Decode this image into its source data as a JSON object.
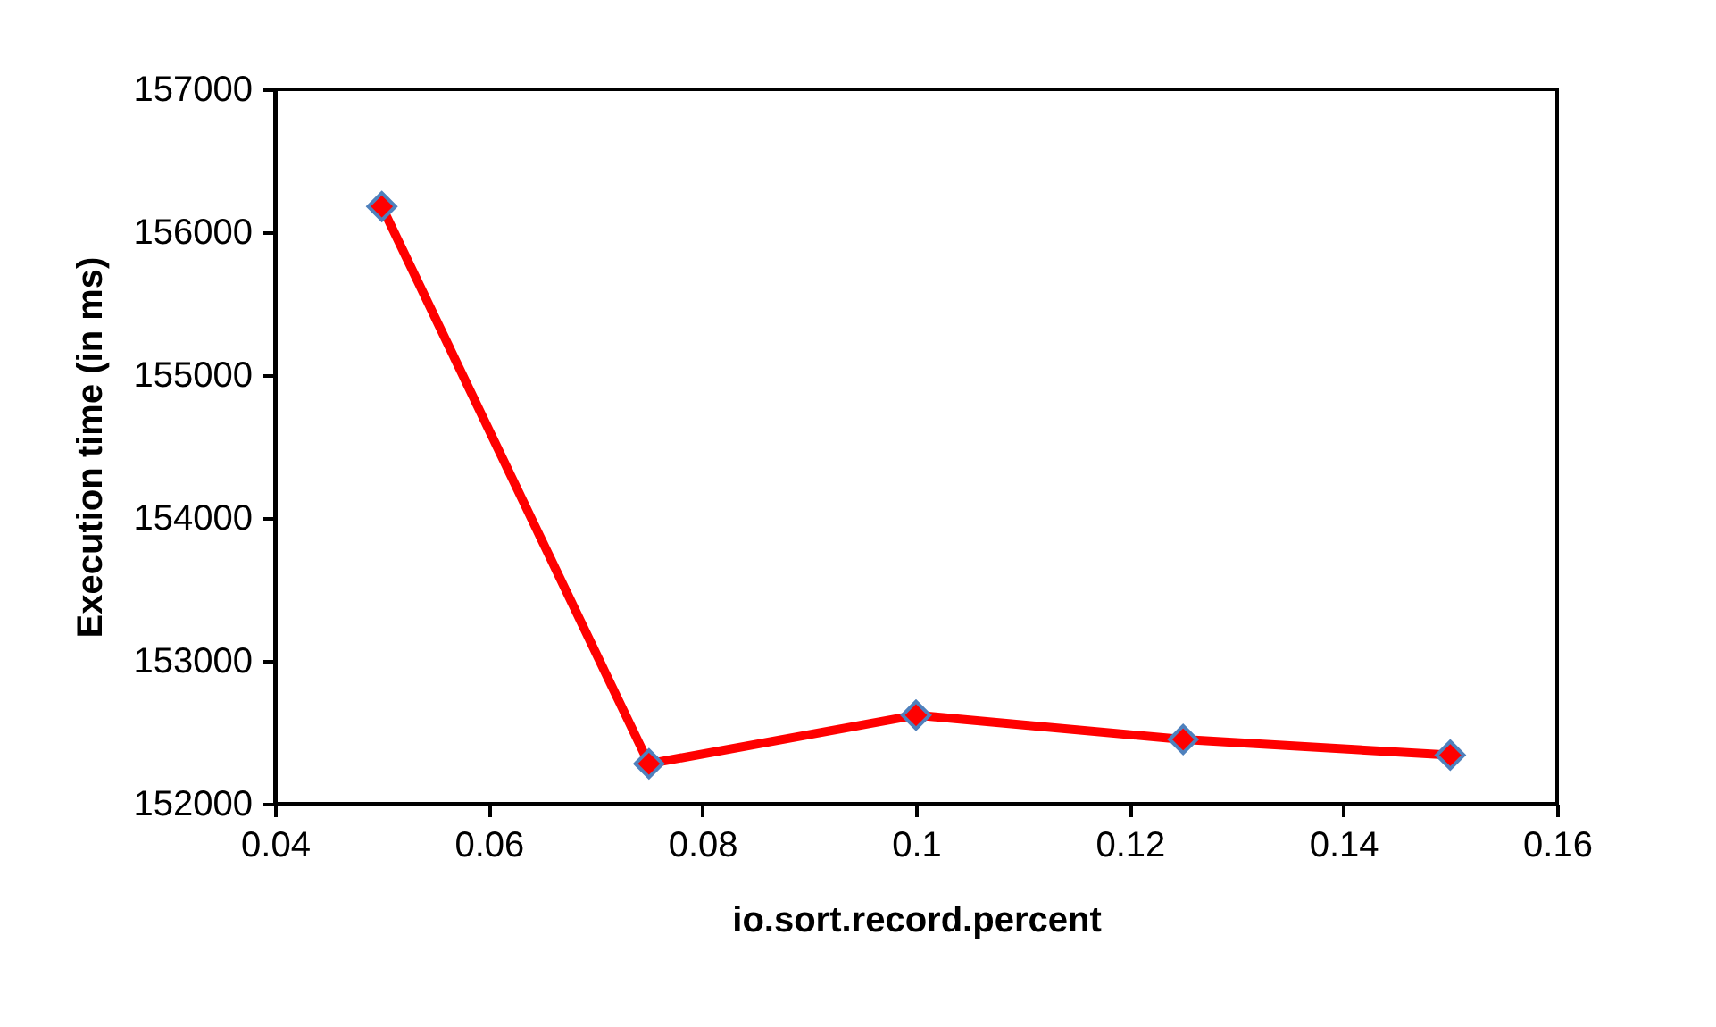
{
  "chart_data": {
    "type": "line",
    "xlabel": "io.sort.record.percent",
    "ylabel": "Execution time (in ms)",
    "x": [
      0.05,
      0.075,
      0.1,
      0.125,
      0.15
    ],
    "series": [
      {
        "color": "#ff0000",
        "values": [
          156180,
          152280,
          152620,
          152450,
          152340
        ]
      }
    ],
    "xlim": [
      0.04,
      0.16
    ],
    "xticks": [
      0.04,
      0.06,
      0.08,
      0.1,
      0.12,
      0.14,
      0.16
    ],
    "ylim": [
      152000,
      157000
    ],
    "yticks": [
      152000,
      153000,
      154000,
      155000,
      156000,
      157000
    ],
    "grid": false,
    "legend": false,
    "marker": "diamond",
    "line_style": "solid"
  }
}
